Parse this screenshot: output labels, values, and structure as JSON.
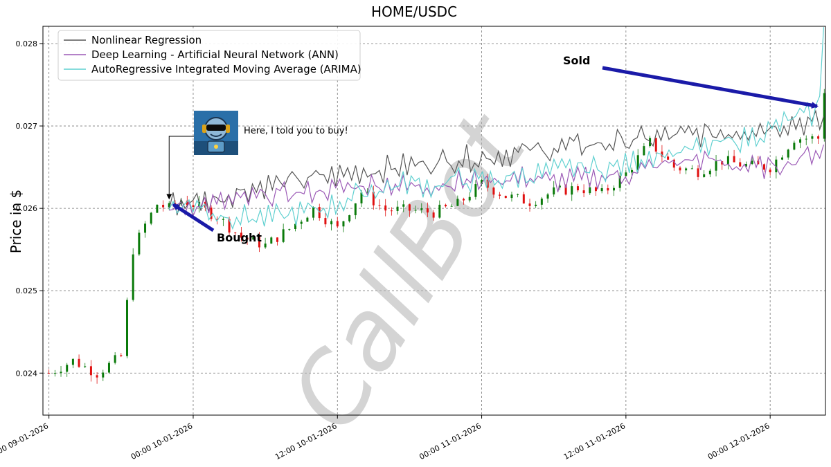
{
  "chart_data": {
    "type": "line",
    "title": "HOME/USDC",
    "ylabel": "Price in $",
    "xlabel": "",
    "ylim": [
      0.02349,
      0.02821
    ],
    "yticks": [
      0.024,
      0.025,
      0.026,
      0.027,
      0.028
    ],
    "ytick_labels": [
      "0.024",
      "0.025",
      "0.026",
      "0.027",
      "0.028"
    ],
    "x_time_range_hours": [
      -0.5,
      64.6
    ],
    "xticks_hours": [
      0,
      12,
      24,
      36,
      48,
      60,
      72
    ],
    "xtick_labels": [
      "12:00 09-01-2026",
      "00:00 10-01-2026",
      "12:00 10-01-2026",
      "00:00 11-01-2026",
      "12:00 11-01-2026",
      "00:00 12-01-2026",
      "12:00 12-01-2026"
    ],
    "grid": true,
    "legend_position": "upper-left",
    "series": [
      {
        "name": "Nonlinear Regression",
        "color": "#555555",
        "x": [
          10,
          12,
          14,
          16,
          18,
          20,
          22,
          24,
          26,
          28,
          30,
          32,
          34,
          36,
          38,
          40,
          42,
          44,
          46,
          48,
          50,
          52,
          54,
          56,
          58,
          60,
          62,
          64,
          64.6
        ],
        "values": [
          0.02605,
          0.02608,
          0.02612,
          0.02622,
          0.02628,
          0.02632,
          0.02636,
          0.0264,
          0.02645,
          0.02648,
          0.02652,
          0.02656,
          0.0266,
          0.02662,
          0.02666,
          0.0267,
          0.02672,
          0.02676,
          0.02678,
          0.02682,
          0.02684,
          0.02688,
          0.0269,
          0.02692,
          0.02696,
          0.027,
          0.02705,
          0.02702,
          0.02708
        ]
      },
      {
        "name": "Deep Learning - Artificial Neural Network (ANN)",
        "color": "#9b59b6",
        "x": [
          10,
          12,
          14,
          16,
          18,
          20,
          22,
          24,
          26,
          28,
          30,
          32,
          34,
          36,
          38,
          40,
          42,
          44,
          46,
          48,
          50,
          52,
          54,
          56,
          58,
          60,
          62,
          64,
          64.6
        ],
        "values": [
          0.026,
          0.02604,
          0.02606,
          0.0261,
          0.02615,
          0.02618,
          0.0262,
          0.02624,
          0.02628,
          0.0263,
          0.02626,
          0.02628,
          0.02632,
          0.02634,
          0.02636,
          0.02638,
          0.02632,
          0.02636,
          0.02638,
          0.0264,
          0.0265,
          0.02655,
          0.0266,
          0.02655,
          0.0265,
          0.0265,
          0.02658,
          0.0267,
          0.0267
        ]
      },
      {
        "name": "AutoRegressive Integrated Moving Average (ARIMA)",
        "color": "#5fd0d0",
        "x": [
          10,
          12,
          14,
          16,
          18,
          20,
          22,
          24,
          26,
          28,
          30,
          32,
          34,
          36,
          38,
          40,
          42,
          44,
          46,
          48,
          50,
          52,
          54,
          56,
          58,
          60,
          62,
          64,
          64.6
        ],
        "values": [
          0.02603,
          0.02606,
          0.02592,
          0.0259,
          0.02588,
          0.02592,
          0.02598,
          0.02605,
          0.0262,
          0.02625,
          0.02632,
          0.02626,
          0.02636,
          0.02632,
          0.02636,
          0.0264,
          0.02645,
          0.0265,
          0.02648,
          0.02652,
          0.02665,
          0.02668,
          0.02672,
          0.02678,
          0.02685,
          0.02695,
          0.0271,
          0.02715,
          0.0282
        ]
      },
      {
        "name": "Price",
        "color": "#222222",
        "x": [
          0,
          2,
          4,
          6,
          7,
          8,
          9,
          10,
          11,
          12,
          14,
          16,
          18,
          20,
          22,
          24,
          26,
          28,
          30,
          32,
          34,
          36,
          38,
          40,
          42,
          44,
          46,
          48,
          50,
          52,
          54,
          56,
          58,
          60,
          62,
          64,
          64.6
        ],
        "values": [
          0.024,
          0.02415,
          0.024,
          0.0242,
          0.0255,
          0.0258,
          0.02605,
          0.026,
          0.0261,
          0.02605,
          0.0259,
          0.02565,
          0.02555,
          0.02575,
          0.026,
          0.02575,
          0.0262,
          0.02598,
          0.02598,
          0.02595,
          0.02605,
          0.0263,
          0.02615,
          0.02608,
          0.0262,
          0.02625,
          0.02618,
          0.02642,
          0.0268,
          0.0265,
          0.02645,
          0.02658,
          0.02652,
          0.0265,
          0.02685,
          0.02685,
          0.02755
        ]
      }
    ],
    "annotations": [
      {
        "text": "Bought",
        "x": 10,
        "y": 0.02608
      },
      {
        "text": "Sold",
        "x": 64.6,
        "y": 0.02724
      },
      {
        "text": "Here, I told you to buy!",
        "x": 10,
        "y": 0.02609
      }
    ],
    "watermark": "CallBot"
  }
}
